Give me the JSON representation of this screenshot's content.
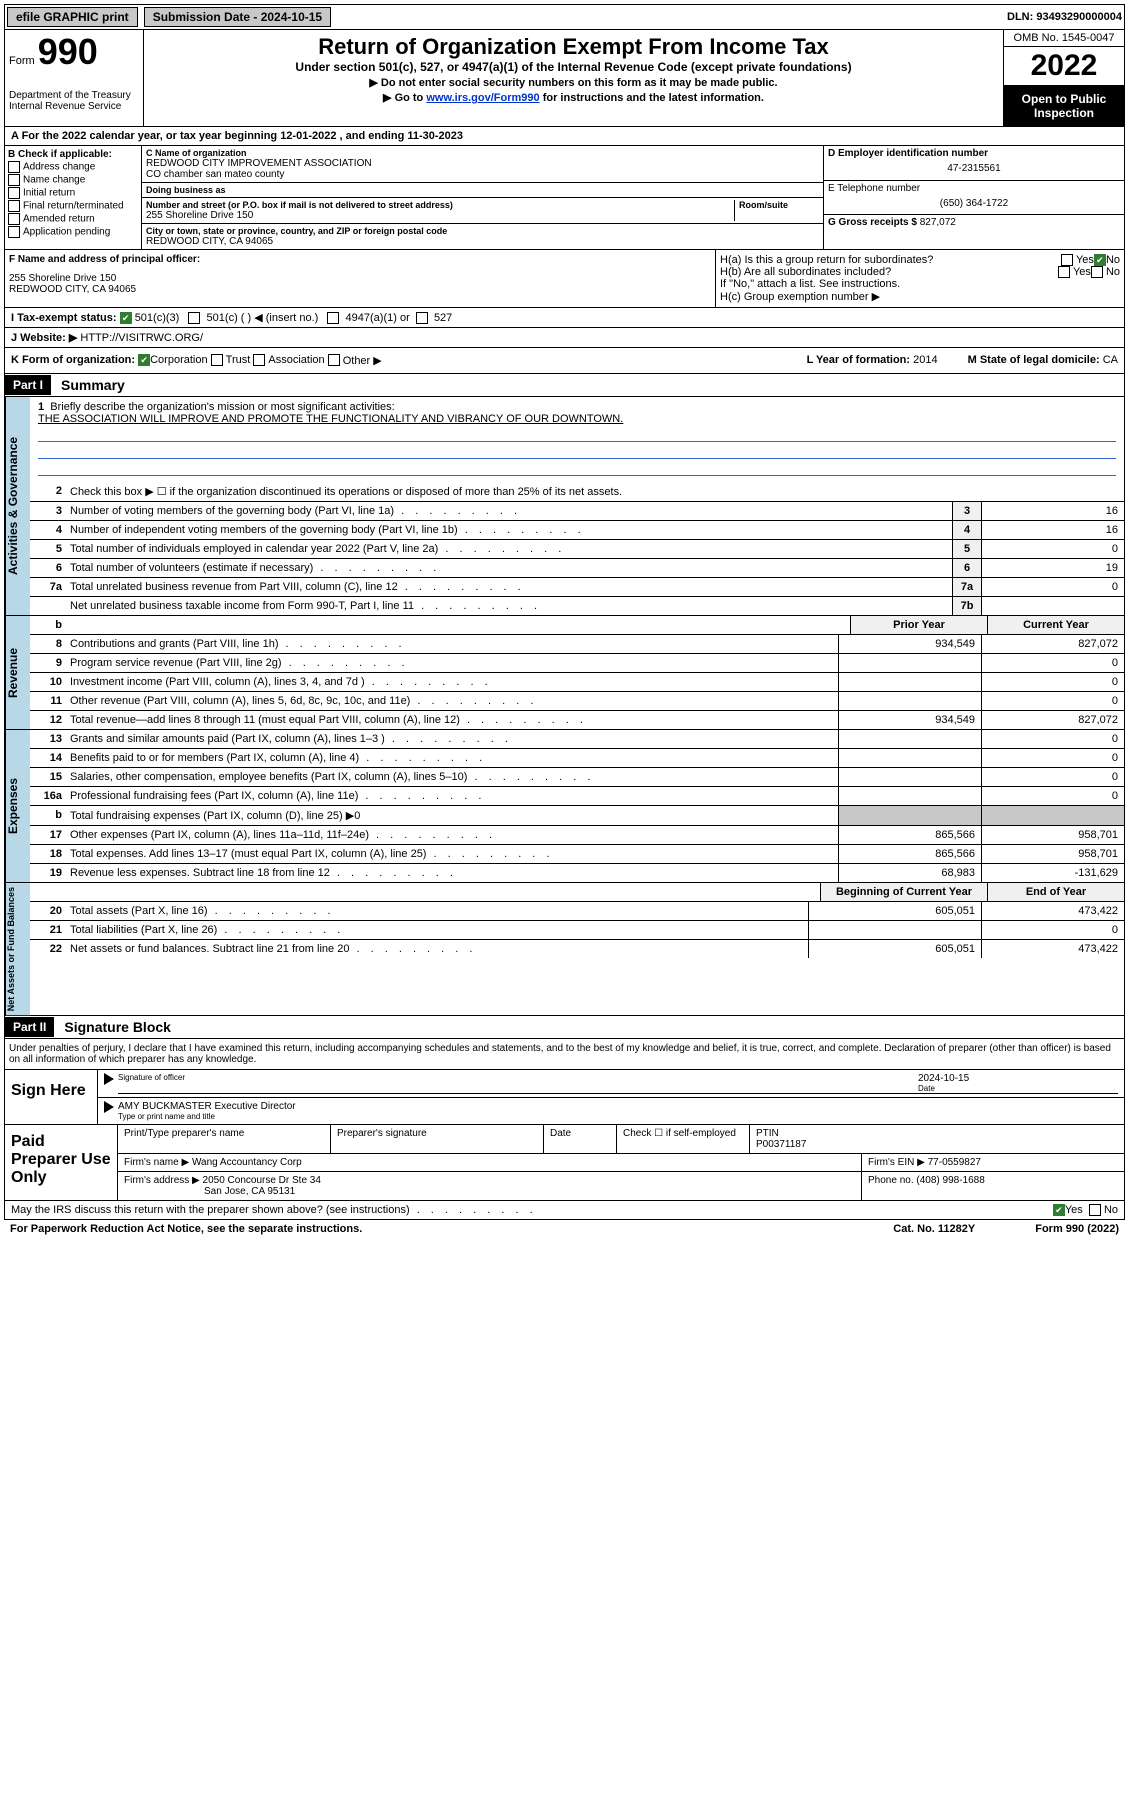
{
  "topbar": {
    "efile_label": "efile GRAPHIC print",
    "submission_label": "Submission Date - 2024-10-15",
    "dln_label": "DLN: 93493290000004"
  },
  "header": {
    "form_word": "Form",
    "form_num": "990",
    "main_title": "Return of Organization Exempt From Income Tax",
    "sub_title": "Under section 501(c), 527, or 4947(a)(1) of the Internal Revenue Code (except private foundations)",
    "instr1": "▶ Do not enter social security numbers on this form as it may be made public.",
    "instr2_pre": "▶ Go to ",
    "instr2_link": "www.irs.gov/Form990",
    "instr2_post": " for instructions and the latest information.",
    "omb": "OMB No. 1545-0047",
    "year": "2022",
    "inspect1": "Open to Public",
    "inspect2": "Inspection",
    "dept": "Department of the Treasury",
    "irs": "Internal Revenue Service"
  },
  "rowA": "A For the 2022 calendar year, or tax year beginning 12-01-2022   , and ending 11-30-2023",
  "sectionB": {
    "header": "B Check if applicable:",
    "opt1": "Address change",
    "opt2": "Name change",
    "opt3": "Initial return",
    "opt4": "Final return/terminated",
    "opt5": "Amended return",
    "opt6": "Application pending"
  },
  "sectionC": {
    "c_label": "C Name of organization",
    "c_val1": "REDWOOD CITY IMPROVEMENT ASSOCIATION",
    "c_val2": "CO chamber san mateo county",
    "dba_label": "Doing business as",
    "addr_label": "Number and street (or P.O. box if mail is not delivered to street address)",
    "addr_val": "255 Shoreline Drive 150",
    "room_label": "Room/suite",
    "city_label": "City or town, state or province, country, and ZIP or foreign postal code",
    "city_val": "REDWOOD CITY, CA  94065"
  },
  "sectionD": {
    "d_label": "D Employer identification number",
    "d_val": "47-2315561",
    "e_label": "E Telephone number",
    "e_val": "(650) 364-1722",
    "g_label": "G Gross receipts $",
    "g_val": "827,072"
  },
  "sectionF": {
    "f_label": "F  Name and address of principal officer:",
    "f_addr1": "255 Shoreline Drive 150",
    "f_addr2": "REDWOOD CITY, CA  94065",
    "ha_label": "H(a)  Is this a group return for subordinates?",
    "ha_yes": "Yes",
    "ha_no": "No",
    "hb_label": "H(b)  Are all subordinates included?",
    "hb_note": "If \"No,\" attach a list. See instructions.",
    "hc_label": "H(c)  Group exemption number ▶"
  },
  "rowI": {
    "label": "I    Tax-exempt status:",
    "opt1": "501(c)(3)",
    "opt2": "501(c) (  ) ◀ (insert no.)",
    "opt3": "4947(a)(1) or",
    "opt4": "527"
  },
  "rowJ": {
    "label": "J   Website: ▶",
    "val": "HTTP://VISITRWC.ORG/"
  },
  "rowK": {
    "label": "K Form of organization:",
    "opt1": "Corporation",
    "opt2": "Trust",
    "opt3": "Association",
    "opt4": "Other ▶",
    "L_label": "L Year of formation:",
    "L_val": "2014",
    "M_label": "M State of legal domicile:",
    "M_val": "CA"
  },
  "part1": {
    "hdr": "Part I",
    "title": "Summary",
    "line1_label": "Briefly describe the organization's mission or most significant activities:",
    "line1_val": "THE ASSOCIATION WILL IMPROVE AND PROMOTE THE FUNCTIONALITY AND VIBRANCY OF OUR DOWNTOWN.",
    "line2": "Check this box ▶ ☐  if the organization discontinued its operations or disposed of more than 25% of its net assets.",
    "lines_gov": [
      {
        "n": "3",
        "t": "Number of voting members of the governing body (Part VI, line 1a)",
        "box": "3",
        "v": "16"
      },
      {
        "n": "4",
        "t": "Number of independent voting members of the governing body (Part VI, line 1b)",
        "box": "4",
        "v": "16"
      },
      {
        "n": "5",
        "t": "Total number of individuals employed in calendar year 2022 (Part V, line 2a)",
        "box": "5",
        "v": "0"
      },
      {
        "n": "6",
        "t": "Total number of volunteers (estimate if necessary)",
        "box": "6",
        "v": "19"
      },
      {
        "n": "7a",
        "t": "Total unrelated business revenue from Part VIII, column (C), line 12",
        "box": "7a",
        "v": "0"
      },
      {
        "n": "",
        "t": "Net unrelated business taxable income from Form 990-T, Part I, line 11",
        "box": "7b",
        "v": ""
      }
    ],
    "hdr_b": "b",
    "col_prior": "Prior Year",
    "col_current": "Current Year",
    "lines_rev": [
      {
        "n": "8",
        "t": "Contributions and grants (Part VIII, line 1h)",
        "p": "934,549",
        "c": "827,072"
      },
      {
        "n": "9",
        "t": "Program service revenue (Part VIII, line 2g)",
        "p": "",
        "c": "0"
      },
      {
        "n": "10",
        "t": "Investment income (Part VIII, column (A), lines 3, 4, and 7d )",
        "p": "",
        "c": "0"
      },
      {
        "n": "11",
        "t": "Other revenue (Part VIII, column (A), lines 5, 6d, 8c, 9c, 10c, and 11e)",
        "p": "",
        "c": "0"
      },
      {
        "n": "12",
        "t": "Total revenue—add lines 8 through 11 (must equal Part VIII, column (A), line 12)",
        "p": "934,549",
        "c": "827,072"
      }
    ],
    "lines_exp": [
      {
        "n": "13",
        "t": "Grants and similar amounts paid (Part IX, column (A), lines 1–3 )",
        "p": "",
        "c": "0"
      },
      {
        "n": "14",
        "t": "Benefits paid to or for members (Part IX, column (A), line 4)",
        "p": "",
        "c": "0"
      },
      {
        "n": "15",
        "t": "Salaries, other compensation, employee benefits (Part IX, column (A), lines 5–10)",
        "p": "",
        "c": "0"
      },
      {
        "n": "16a",
        "t": "Professional fundraising fees (Part IX, column (A), line 11e)",
        "p": "",
        "c": "0"
      },
      {
        "n": "b",
        "t": "Total fundraising expenses (Part IX, column (D), line 25) ▶0",
        "p": "",
        "c": "",
        "shade": true
      },
      {
        "n": "17",
        "t": "Other expenses (Part IX, column (A), lines 11a–11d, 11f–24e)",
        "p": "865,566",
        "c": "958,701"
      },
      {
        "n": "18",
        "t": "Total expenses. Add lines 13–17 (must equal Part IX, column (A), line 25)",
        "p": "865,566",
        "c": "958,701"
      },
      {
        "n": "19",
        "t": "Revenue less expenses. Subtract line 18 from line 12",
        "p": "68,983",
        "c": "-131,629"
      }
    ],
    "col_begin": "Beginning of Current Year",
    "col_end": "End of Year",
    "lines_net": [
      {
        "n": "20",
        "t": "Total assets (Part X, line 16)",
        "p": "605,051",
        "c": "473,422"
      },
      {
        "n": "21",
        "t": "Total liabilities (Part X, line 26)",
        "p": "",
        "c": "0"
      },
      {
        "n": "22",
        "t": "Net assets or fund balances. Subtract line 21 from line 20",
        "p": "605,051",
        "c": "473,422"
      }
    ],
    "vert_gov": "Activities & Governance",
    "vert_rev": "Revenue",
    "vert_exp": "Expenses",
    "vert_net": "Net Assets or Fund Balances"
  },
  "part2": {
    "hdr": "Part II",
    "title": "Signature Block",
    "decl": "Under penalties of perjury, I declare that I have examined this return, including accompanying schedules and statements, and to the best of my knowledge and belief, it is true, correct, and complete. Declaration of preparer (other than officer) is based on all information of which preparer has any knowledge.",
    "sign_here": "Sign Here",
    "sig_officer": "Signature of officer",
    "sig_date_label": "Date",
    "sig_date": "2024-10-15",
    "sig_name": "AMY BUCKMASTER Executive Director",
    "sig_name_label": "Type or print name and title",
    "paid": "Paid Preparer Use Only",
    "prep_name_label": "Print/Type preparer's name",
    "prep_sig_label": "Preparer's signature",
    "date_label": "Date",
    "check_label": "Check ☐ if self-employed",
    "ptin_label": "PTIN",
    "ptin": "P00371187",
    "firm_name_label": "Firm's name   ▶",
    "firm_name": "Wang Accountancy Corp",
    "firm_ein_label": "Firm's EIN ▶",
    "firm_ein": "77-0559827",
    "firm_addr_label": "Firm's address ▶",
    "firm_addr1": "2050 Concourse Dr Ste 34",
    "firm_addr2": "San Jose, CA  95131",
    "phone_label": "Phone no.",
    "phone": "(408) 998-1688"
  },
  "footer": {
    "discuss": "May the IRS discuss this return with the preparer shown above? (see instructions)",
    "yes": "Yes",
    "no": "No",
    "paperwork": "For Paperwork Reduction Act Notice, see the separate instructions.",
    "cat": "Cat. No. 11282Y",
    "form": "Form 990 (2022)"
  }
}
